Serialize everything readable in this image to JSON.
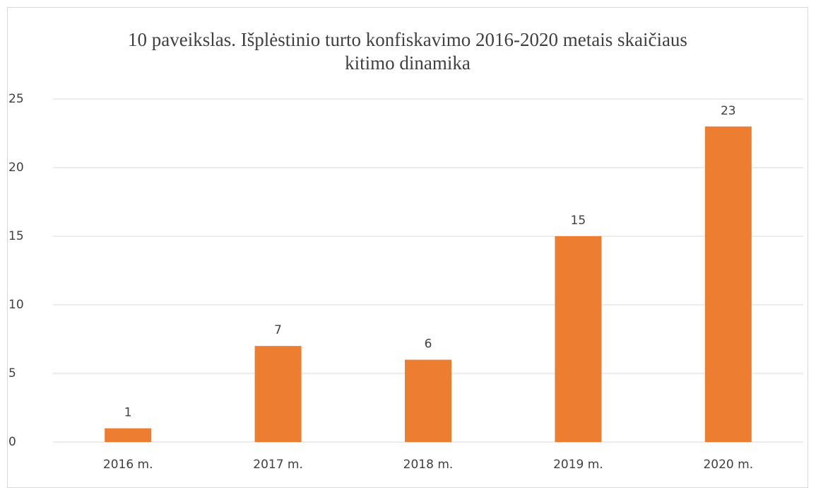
{
  "chart_data": {
    "type": "bar",
    "title": "10 paveikslas. Išplėstinio turto konfiskavimo 2016-2020 metais skaičiaus kitimo dinamika",
    "categories": [
      "2016 m.",
      "2017 m.",
      "2018 m.",
      "2019 m.",
      "2020 m."
    ],
    "values": [
      1,
      7,
      6,
      15,
      23
    ],
    "color": "#ed7d31",
    "ylim": [
      0,
      25
    ],
    "yticks": [
      0,
      5,
      10,
      15,
      20,
      25
    ],
    "grid": true
  }
}
